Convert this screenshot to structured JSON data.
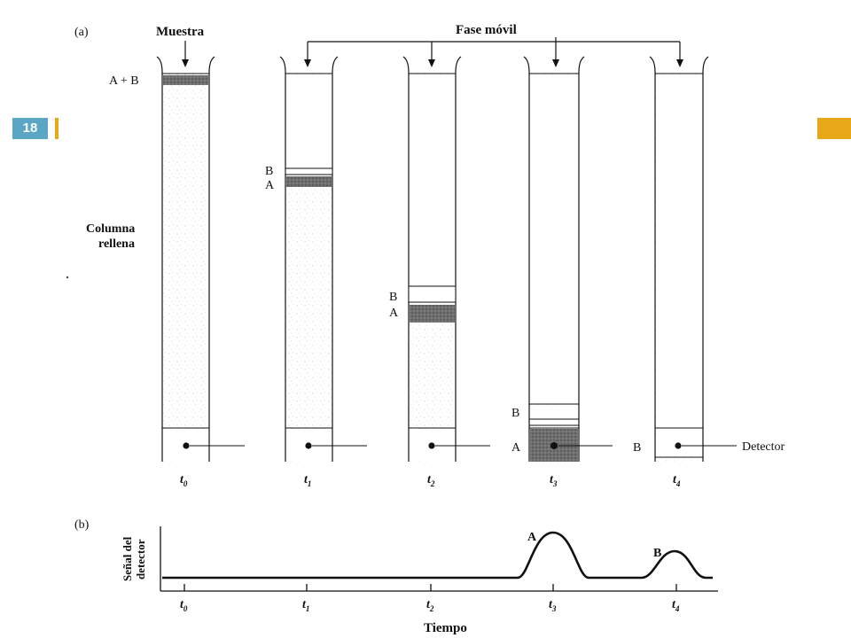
{
  "slide": {
    "number": "18",
    "badge_color": "#5aa6c4",
    "accent_color": "#e6a817"
  },
  "panel_a": {
    "label": "(a)",
    "sample_label": "Muestra",
    "mobile_phase_label": "Fase móvil",
    "column_label_line1": "Columna",
    "column_label_line2": "rellena",
    "detector_label": "Detector",
    "mixture_label": "A + B",
    "band_a_label": "A",
    "band_b_label": "B",
    "columns": [
      {
        "time_main": "t",
        "time_sub": "0",
        "state": "sample_at_top"
      },
      {
        "time_main": "t",
        "time_sub": "1",
        "state": "bands_upper"
      },
      {
        "time_main": "t",
        "time_sub": "2",
        "state": "bands_middle"
      },
      {
        "time_main": "t",
        "time_sub": "3",
        "state": "A_at_detector"
      },
      {
        "time_main": "t",
        "time_sub": "4",
        "state": "B_at_detector"
      }
    ]
  },
  "panel_b": {
    "label": "(b)",
    "ylabel_line1": "Señal del",
    "ylabel_line2": "detector",
    "xlabel": "Tiempo",
    "peak_a_label": "A",
    "peak_b_label": "B",
    "ticks": [
      {
        "main": "t",
        "sub": "0"
      },
      {
        "main": "t",
        "sub": "1"
      },
      {
        "main": "t",
        "sub": "2"
      },
      {
        "main": "t",
        "sub": "3"
      },
      {
        "main": "t",
        "sub": "4"
      }
    ]
  }
}
